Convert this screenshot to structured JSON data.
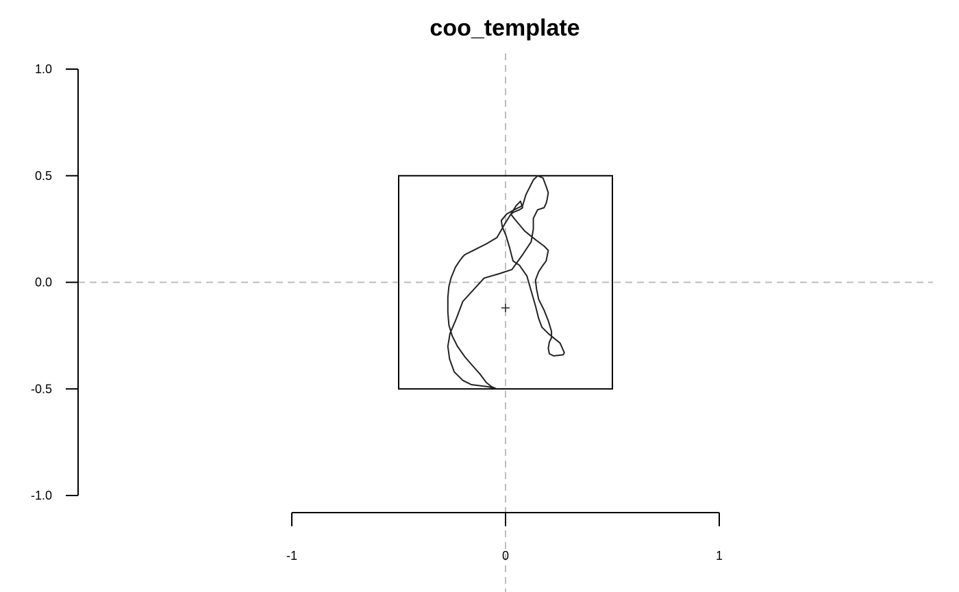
{
  "chart_data": {
    "type": "scatter",
    "title": "coo_template",
    "xlabel": "",
    "ylabel": "",
    "xlim": [
      -2,
      2
    ],
    "ylim": [
      -1,
      1
    ],
    "x_axis": {
      "ticks": [
        -1,
        0,
        1
      ],
      "tick_labels": [
        "-1",
        "0",
        "1"
      ]
    },
    "y_axis": {
      "ticks": [
        -1,
        -0.5,
        0,
        0.5,
        1
      ],
      "tick_labels": [
        "-1.0",
        "-0.5",
        "0.0",
        "0.5",
        "1.0"
      ]
    },
    "reference_lines": {
      "x": 0,
      "y": 0,
      "style": "dashed",
      "color": "#bdbdbd"
    },
    "bounding_box": {
      "x": [
        -0.5,
        0.5
      ],
      "y": [
        -0.5,
        0.5
      ]
    },
    "centroid": {
      "x": 0,
      "y": -0.12
    },
    "series": [
      {
        "shape": "cat-silhouette-outline",
        "color": "#222222",
        "x": [
          -0.04,
          -0.065,
          -0.09,
          -0.12,
          -0.155,
          -0.19,
          -0.225,
          -0.25,
          -0.265,
          -0.27,
          -0.27,
          -0.265,
          -0.255,
          -0.235,
          -0.215,
          -0.2,
          -0.19,
          -0.15,
          -0.09,
          -0.04,
          0,
          0.05,
          0.07,
          0.08,
          0.065,
          0.04,
          0.025,
          0.04,
          0.09,
          0.14,
          0.18,
          0.2,
          0.19,
          0.175,
          0.155,
          0.14,
          0.145,
          0.155,
          0.18,
          0.2,
          0.215,
          0.215,
          0.205,
          0.2,
          0.205,
          0.225,
          0.27,
          0.275,
          0.255,
          0.2,
          0.17,
          0.155,
          0.14,
          0.12,
          0.1,
          0.065,
          0.035,
          0.02,
          0.002,
          -0.015,
          -0.02,
          0.005,
          0.04,
          0.08,
          0.095,
          0.11,
          0.13,
          0.15,
          0.175,
          0.19,
          0.2,
          0.195,
          0.19,
          0.18,
          0.15,
          0.13,
          0.13,
          0.12,
          0.08,
          0.03,
          -0.03,
          -0.1,
          -0.2,
          -0.23,
          -0.26,
          -0.27,
          -0.262,
          -0.24,
          -0.2,
          -0.16,
          -0.08,
          -0.04
        ],
        "y": [
          -0.5,
          -0.49,
          -0.47,
          -0.43,
          -0.39,
          -0.35,
          -0.3,
          -0.25,
          -0.2,
          -0.14,
          -0.07,
          -0.02,
          0.02,
          0.07,
          0.1,
          0.12,
          0.13,
          0.15,
          0.18,
          0.21,
          0.28,
          0.36,
          0.38,
          0.35,
          0.34,
          0.33,
          0.32,
          0.3,
          0.24,
          0.2,
          0.17,
          0.15,
          0.1,
          0.08,
          0.05,
          0.01,
          -0.03,
          -0.08,
          -0.13,
          -0.18,
          -0.23,
          -0.26,
          -0.28,
          -0.31,
          -0.335,
          -0.345,
          -0.34,
          -0.33,
          -0.285,
          -0.24,
          -0.21,
          -0.17,
          -0.11,
          -0.04,
          0.03,
          0.08,
          0.1,
          0.16,
          0.22,
          0.26,
          0.29,
          0.32,
          0.34,
          0.36,
          0.41,
          0.44,
          0.48,
          0.5,
          0.49,
          0.45,
          0.42,
          0.39,
          0.37,
          0.35,
          0.34,
          0.3,
          0.25,
          0.19,
          0.13,
          0.06,
          0.04,
          0.02,
          -0.09,
          -0.17,
          -0.24,
          -0.3,
          -0.36,
          -0.42,
          -0.46,
          -0.48,
          -0.49,
          -0.5
        ]
      }
    ]
  }
}
